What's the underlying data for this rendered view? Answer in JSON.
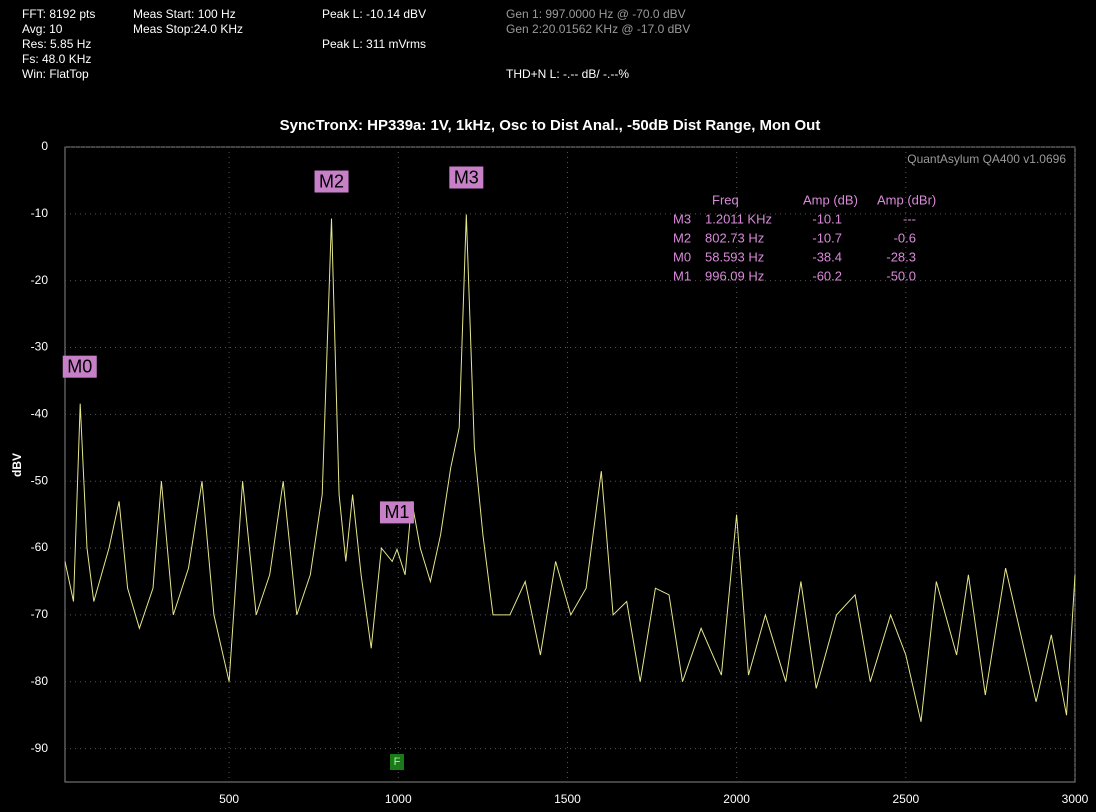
{
  "header": {
    "col1": [
      "FFT: 8192 pts",
      "Avg: 10",
      "Res: 5.85 Hz",
      "Fs: 48.0 KHz",
      "Win: FlatTop"
    ],
    "col2": [
      "Meas Start: 100 Hz",
      "Meas Stop:24.0 KHz"
    ],
    "peak_dbv": "Peak L: -10.14 dBV",
    "peak_mv": "Peak L: 311 mVrms",
    "gen1": "Gen 1: 997.0000 Hz @ -70.0  dBV",
    "gen2": "Gen 2:20.01562 KHz @ -17.0  dBV",
    "thdn": "THD+N L: -.-- dB/ -.--%"
  },
  "chart_data": {
    "type": "line",
    "title": "SyncTronX: HP339a: 1V, 1kHz, Osc to Dist Anal., -50dB Dist Range, Mon Out",
    "watermark": "QuantAsylum QA400 v1.0696",
    "y_label": "dBV",
    "color": "#e6e68a",
    "grid": true,
    "xlim": [
      15,
      3000
    ],
    "ylim": [
      -95,
      0
    ],
    "xticks": [
      500,
      1000,
      1500,
      2000,
      2500,
      3000
    ],
    "yticks": [
      0,
      -10,
      -20,
      -30,
      -40,
      -50,
      -60,
      -70,
      -80,
      -90
    ],
    "x": [
      15,
      40,
      60,
      80,
      100,
      145,
      175,
      200,
      235,
      275,
      300,
      335,
      380,
      420,
      455,
      500,
      540,
      580,
      620,
      660,
      700,
      740,
      775,
      802.73,
      825,
      845,
      865,
      890,
      920,
      950,
      982,
      996.09,
      1020,
      1040,
      1065,
      1095,
      1125,
      1155,
      1180,
      1201.1,
      1225,
      1250,
      1280,
      1330,
      1375,
      1420,
      1465,
      1510,
      1555,
      1600,
      1635,
      1675,
      1715,
      1760,
      1800,
      1840,
      1895,
      1955,
      2000,
      2035,
      2085,
      2145,
      2190,
      2235,
      2295,
      2350,
      2395,
      2455,
      2500,
      2545,
      2590,
      2650,
      2685,
      2735,
      2795,
      2840,
      2885,
      2930,
      2975,
      3000
    ],
    "values": [
      -62,
      -68,
      -38.4,
      -60,
      -68,
      -60,
      -53,
      -66,
      -72,
      -66,
      -50,
      -70,
      -63,
      -50,
      -70,
      -80,
      -50,
      -70,
      -64,
      -50,
      -70,
      -64,
      -52,
      -10.7,
      -52,
      -62,
      -52,
      -64,
      -75,
      -60,
      -62,
      -60.2,
      -64,
      -53,
      -60,
      -65,
      -58,
      -48,
      -42,
      -10.1,
      -45,
      -58,
      -70,
      -70,
      -65,
      -76,
      -62,
      -70,
      -66,
      -48.5,
      -70,
      -68,
      -80,
      -66,
      -67,
      -80,
      -72,
      -79,
      -55,
      -79,
      -70,
      -80,
      -65,
      -81,
      -70,
      -67,
      -80,
      -70,
      -76,
      -86,
      -65,
      -76,
      -64,
      -82,
      -63,
      -73,
      -83,
      -73,
      -85,
      -64
    ],
    "table_header": [
      "Freq",
      "Amp (dB)",
      "Amp (dBr)"
    ],
    "markers": [
      {
        "name": "M3",
        "freq_hz": 1201.1,
        "freq": "1.2011 KHz",
        "amp": -10.1,
        "amp_r": "---"
      },
      {
        "name": "M2",
        "freq_hz": 802.73,
        "freq": "802.73 Hz",
        "amp": -10.7,
        "amp_r": "-0.6"
      },
      {
        "name": "M0",
        "freq_hz": 58.593,
        "freq": "58.593 Hz",
        "amp": -38.4,
        "amp_r": "-28.3"
      },
      {
        "name": "M1",
        "freq_hz": 996.09,
        "freq": "996.09 Hz",
        "amp": -60.2,
        "amp_r": "-50.0"
      }
    ],
    "f_marker": "F"
  }
}
